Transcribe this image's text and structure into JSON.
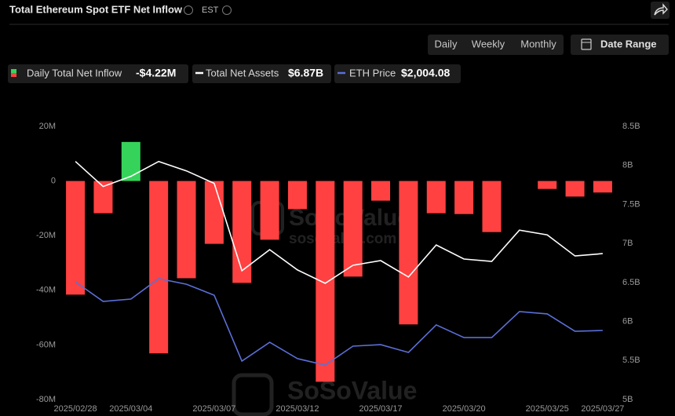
{
  "ui": {
    "title": "Total Ethereum Spot ETF Net Inflow",
    "timezone": "EST",
    "periods": [
      "Daily",
      "Weekly",
      "Monthly"
    ],
    "active_period": 0,
    "date_range": "Date Range",
    "watermark": [
      "SoSoValue",
      "sosovalue.com"
    ]
  },
  "chart_data": {
    "type": "combo",
    "categories": [
      "2025/02/28",
      null,
      "2025/03/04",
      null,
      null,
      "2025/03/07",
      null,
      null,
      "2025/03/12",
      null,
      null,
      "2025/03/17",
      null,
      null,
      "2025/03/20",
      null,
      null,
      "2025/03/25",
      null,
      "2025/03/27"
    ],
    "series": [
      {
        "name": "Daily Total Net Inflow",
        "current_label": "-$4.22M",
        "type": "bar",
        "axis": "y",
        "color": "#ff4141",
        "positive_color": "#36d35a",
        "values": [
          -41.6,
          -11.8,
          14.3,
          -63.1,
          -35.6,
          -23.0,
          -37.3,
          -21.5,
          -10.3,
          -73.5,
          -35.0,
          -7.2,
          -52.5,
          -11.8,
          -12.1,
          -18.7,
          0,
          -2.9,
          -5.7,
          -4.22
        ]
      },
      {
        "name": "Total Net Assets",
        "current_label": "$6.87B",
        "type": "line",
        "axis": "y2",
        "color": "#ffffff",
        "values": [
          8.05,
          7.73,
          7.86,
          8.05,
          7.93,
          7.77,
          6.65,
          6.92,
          6.66,
          6.49,
          6.72,
          6.78,
          6.57,
          6.98,
          6.8,
          6.77,
          7.17,
          7.11,
          6.84,
          6.87
        ]
      },
      {
        "name": "ETH Price",
        "current_label": "$2,004.08",
        "type": "line",
        "axis": "y3",
        "color": "#5b6fd6",
        "values": [
          2230,
          2139,
          2150,
          2245,
          2219,
          2168,
          1862,
          1949,
          1873,
          1843,
          1931,
          1938,
          1902,
          2030,
          1971,
          1971,
          2092,
          2081,
          2000,
          2004.08
        ]
      }
    ],
    "ylim": [
      -80,
      20
    ],
    "yticks": [
      {
        "value": 20,
        "label": "20M"
      },
      0,
      {
        "value": -20,
        "label": "-20M"
      },
      {
        "value": -40,
        "label": "-40M"
      },
      {
        "value": -60,
        "label": "-60M"
      },
      {
        "value": -80,
        "label": "-80M"
      }
    ],
    "y2lim": [
      5,
      8.5
    ],
    "y2ticks": [
      {
        "value": 8.5,
        "label": "8.5B"
      },
      {
        "value": 8,
        "label": "8B"
      },
      {
        "value": 7.5,
        "label": "7.5B"
      },
      {
        "value": 7,
        "label": "7B"
      },
      {
        "value": 6.5,
        "label": "6.5B"
      },
      {
        "value": 6,
        "label": "6B"
      },
      {
        "value": 5.5,
        "label": "5.5B"
      },
      {
        "value": 5,
        "label": "5B"
      }
    ],
    "y3lim": [
      1683,
      2953
    ],
    "grid": false
  }
}
